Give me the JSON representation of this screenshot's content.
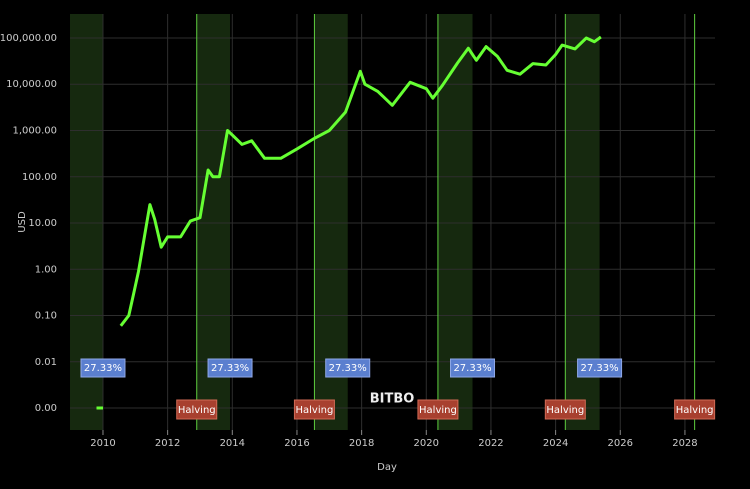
{
  "chart_data": {
    "type": "line",
    "x_label": "Day",
    "y_label": "USD",
    "watermark": "BITBO",
    "log_y": true,
    "grid": true,
    "xlim": [
      2008.98,
      2028.93
    ],
    "xticks": [
      2010,
      2012,
      2014,
      2016,
      2018,
      2020,
      2022,
      2024,
      2026,
      2028
    ],
    "ylim": [
      0.000335,
      330000
    ],
    "yticks": [
      {
        "value": 0.001,
        "label": "0.00"
      },
      {
        "value": 0.01,
        "label": "0.01"
      },
      {
        "value": 0.1,
        "label": "0.10"
      },
      {
        "value": 1,
        "label": "1.00"
      },
      {
        "value": 10,
        "label": "10.00"
      },
      {
        "value": 100,
        "label": "100.00"
      },
      {
        "value": 1000,
        "label": "1,000.00"
      },
      {
        "value": 10000,
        "label": "10,000.00"
      },
      {
        "value": 100000,
        "label": "100,000.00"
      }
    ],
    "series": [
      {
        "color": "#66ff33",
        "x": [
          2009.8,
          2010.0,
          null,
          2010.55,
          2010.8,
          2010.95,
          2011.1,
          2011.3,
          2011.45,
          2011.6,
          2011.8,
          2012.0,
          2012.4,
          2012.7,
          2013.0,
          2013.25,
          2013.4,
          2013.6,
          2013.85,
          2014.0,
          2014.3,
          2014.6,
          2015.0,
          2015.5,
          2016.0,
          2016.5,
          2017.0,
          2017.5,
          2017.96,
          2018.1,
          2018.5,
          2018.95,
          2019.5,
          2020.0,
          2020.2,
          2020.5,
          2020.97,
          2021.3,
          2021.55,
          2021.85,
          2022.2,
          2022.5,
          2022.9,
          2023.3,
          2023.7,
          2024.0,
          2024.2,
          2024.6,
          2024.95,
          2025.2,
          2025.4
        ],
        "values": [
          0.001,
          0.001,
          null,
          0.06,
          0.1,
          0.3,
          0.9,
          6,
          25,
          12,
          3,
          5,
          5,
          11,
          13,
          140,
          100,
          100,
          1000,
          800,
          500,
          600,
          250,
          250,
          400,
          650,
          1000,
          2500,
          19000,
          10000,
          7000,
          3500,
          11000,
          8000,
          5000,
          9500,
          29000,
          60000,
          33000,
          65000,
          40000,
          20000,
          16500,
          28000,
          26000,
          44000,
          70000,
          58000,
          100000,
          83000,
          105000
        ]
      }
    ],
    "bands": [
      [
        2008.98,
        2010.0
      ],
      [
        2012.9,
        2013.93
      ],
      [
        2016.54,
        2017.57
      ],
      [
        2020.36,
        2021.43
      ],
      [
        2024.3,
        2025.36
      ]
    ],
    "band_label": "27.33%",
    "halvings": [
      2012.9,
      2016.54,
      2020.36,
      2024.3,
      2028.3
    ],
    "halving_label": "Halving"
  }
}
